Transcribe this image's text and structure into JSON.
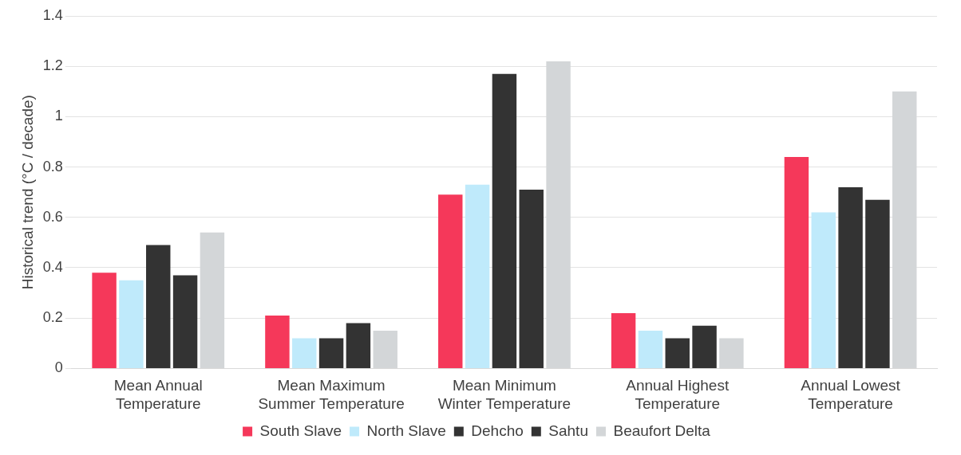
{
  "chart_data": {
    "type": "bar",
    "ylabel": "Historical trend (°C / decade)",
    "categories": [
      "Mean Annual Temperature",
      "Mean Maximum Summer Temperature",
      "Mean Minimum Winter Temperature",
      "Annual Highest Temperature",
      "Annual Lowest Temperature"
    ],
    "series": [
      {
        "name": "South Slave",
        "color": "#f5385a",
        "values": [
          0.38,
          0.21,
          0.69,
          0.22,
          0.84
        ]
      },
      {
        "name": "North Slave",
        "color": "#bfeafb",
        "values": [
          0.35,
          0.12,
          0.73,
          0.15,
          0.62
        ]
      },
      {
        "name": "Dehcho",
        "color": "#333333",
        "values": [
          0.49,
          0.12,
          1.17,
          0.12,
          0.72
        ]
      },
      {
        "name": "Sahtu",
        "color": "#333333",
        "values": [
          0.37,
          0.18,
          0.71,
          0.17,
          0.67
        ]
      },
      {
        "name": "Beaufort Delta",
        "color": "#d3d6d8",
        "values": [
          0.54,
          0.15,
          1.22,
          0.12,
          1.1
        ]
      }
    ],
    "ylim": [
      0,
      1.4
    ],
    "yticks": [
      0,
      0.2,
      0.4,
      0.6,
      0.8,
      1,
      1.2,
      1.4
    ],
    "grid": "y",
    "legend": "bottom"
  }
}
